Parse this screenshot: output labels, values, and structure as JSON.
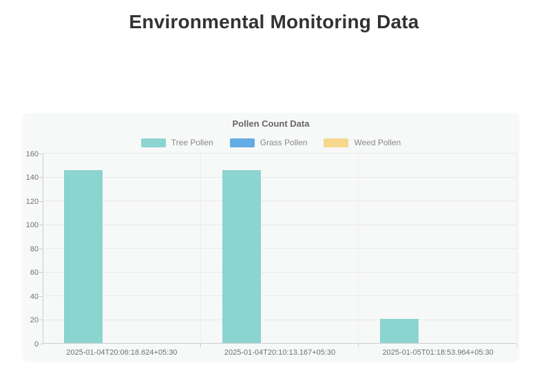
{
  "page": {
    "title": "Environmental Monitoring Data"
  },
  "chart_data": {
    "type": "bar",
    "title": "Pollen Count Data",
    "categories": [
      "2025-01-04T20:06:18.624+05:30",
      "2025-01-04T20:10:13.167+05:30",
      "2025-01-05T01:18:53.964+05:30"
    ],
    "series": [
      {
        "name": "Tree Pollen",
        "color": "#8cd4d0",
        "values": [
          146,
          146,
          21
        ]
      },
      {
        "name": "Grass Pollen",
        "color": "#63ace5",
        "values": [
          0,
          0,
          0
        ]
      },
      {
        "name": "Weed Pollen",
        "color": "#f6d88c",
        "values": [
          0,
          0,
          0
        ]
      }
    ],
    "ylim": [
      0,
      160
    ],
    "y_ticks": [
      0,
      20,
      40,
      60,
      80,
      100,
      120,
      140,
      160
    ],
    "grid": true,
    "legend_position": "top"
  },
  "colors": {
    "card_background": "#f7f8f8",
    "axis_line": "#cccccc",
    "gridline": "#e9e9e9",
    "title_text": "#333333",
    "chart_title_text": "#666666",
    "axis_label_text": "#6e7079",
    "legend_text": "#888888"
  }
}
